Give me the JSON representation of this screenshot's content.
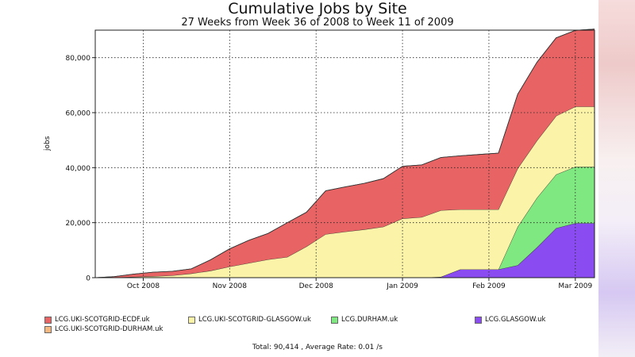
{
  "chart_data": {
    "type": "area",
    "title": "Cumulative Jobs by Site",
    "subtitle": "27 Weeks from Week 36 of 2008 to Week 11 of 2009",
    "xlabel": "",
    "ylabel": "jobs",
    "ylim": [
      0,
      90000
    ],
    "grid": true,
    "legend_position": "bottom",
    "y_ticks": [
      "0",
      "20,000",
      "40,000",
      "60,000",
      "80,000"
    ],
    "y_tick_values": [
      0,
      20000,
      40000,
      60000,
      80000
    ],
    "x_ticks": [
      "Oct 2008",
      "Nov 2008",
      "Dec 2008",
      "Jan 2009",
      "Feb 2009",
      "Mar 2009"
    ],
    "x_tick_positions": [
      2.5,
      7,
      11.5,
      16,
      20.5,
      25
    ],
    "x": [
      0,
      1,
      2,
      3,
      4,
      5,
      6,
      7,
      8,
      9,
      10,
      11,
      12,
      13,
      14,
      15,
      16,
      17,
      18,
      19,
      20,
      21,
      22,
      23,
      24,
      25,
      26
    ],
    "series": [
      {
        "name": "LCG.GLASGOW.uk",
        "color": "#8a4cf0",
        "values": [
          0,
          0,
          0,
          0,
          0,
          0,
          0,
          0,
          0,
          0,
          0,
          0,
          0,
          0,
          0,
          0,
          0,
          0,
          300,
          3000,
          3000,
          3000,
          4500,
          11000,
          18000,
          19800,
          19800
        ]
      },
      {
        "name": "LCG.DURHAM.uk",
        "color": "#80e880",
        "values": [
          0,
          0,
          0,
          0,
          0,
          0,
          0,
          0,
          0,
          0,
          0,
          0,
          0,
          0,
          0,
          0,
          0,
          0,
          0,
          0,
          0,
          0,
          14000,
          18000,
          19500,
          20500,
          20500
        ]
      },
      {
        "name": "LCG.UKI-SCOTGRID-GLASGOW.uk",
        "color": "#fbf4a8",
        "values": [
          0,
          100,
          300,
          500,
          800,
          1500,
          2500,
          4000,
          5300,
          6600,
          7500,
          11300,
          15800,
          16700,
          17500,
          18500,
          21500,
          22000,
          24200,
          21800,
          21800,
          21800,
          21200,
          20800,
          21300,
          21900,
          21900
        ]
      },
      {
        "name": "LCG.UKI-SCOTGRID-ECDF.uk",
        "color": "#e86464",
        "values": [
          0,
          300,
          1000,
          1500,
          1500,
          1700,
          4000,
          6500,
          8300,
          9500,
          12500,
          12500,
          15800,
          16300,
          16800,
          17500,
          19000,
          19000,
          19200,
          19500,
          20000,
          20500,
          27000,
          28500,
          28400,
          27700,
          28200
        ]
      },
      {
        "name": "LCG.UKI-SCOTGRID-DURHAM.uk",
        "color": "#f5b880",
        "values": [
          0,
          0,
          0,
          0,
          0,
          0,
          0,
          0,
          0,
          0,
          0,
          0,
          0,
          0,
          0,
          0,
          0,
          0,
          0,
          0,
          0,
          0,
          0,
          0,
          0,
          0,
          0
        ]
      }
    ],
    "footer": "Total: 90,414 , Average Rate: 0.01 /s"
  }
}
